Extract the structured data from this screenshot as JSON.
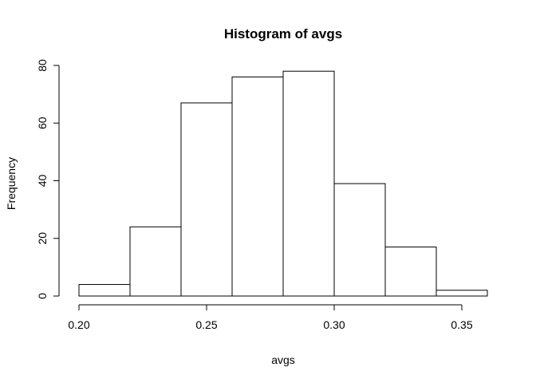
{
  "chart_data": {
    "type": "bar",
    "title": "Histogram of avgs",
    "xlabel": "avgs",
    "ylabel": "Frequency",
    "bins": [
      {
        "start": 0.2,
        "end": 0.22,
        "count": 4
      },
      {
        "start": 0.22,
        "end": 0.24,
        "count": 24
      },
      {
        "start": 0.24,
        "end": 0.26,
        "count": 67
      },
      {
        "start": 0.26,
        "end": 0.28,
        "count": 76
      },
      {
        "start": 0.28,
        "end": 0.3,
        "count": 78
      },
      {
        "start": 0.3,
        "end": 0.32,
        "count": 39
      },
      {
        "start": 0.32,
        "end": 0.34,
        "count": 17
      },
      {
        "start": 0.34,
        "end": 0.36,
        "count": 2
      }
    ],
    "xticks": [
      0.2,
      0.25,
      0.3,
      0.35
    ],
    "xtick_labels": [
      "0.20",
      "0.25",
      "0.30",
      "0.35"
    ],
    "yticks": [
      0,
      20,
      40,
      60,
      80
    ],
    "ytick_labels": [
      "0",
      "20",
      "40",
      "60",
      "80"
    ],
    "xlim": [
      0.2,
      0.36
    ],
    "ylim": [
      0,
      80
    ],
    "grid": false,
    "bar_fill": "#ffffff",
    "bar_stroke": "#000000"
  }
}
